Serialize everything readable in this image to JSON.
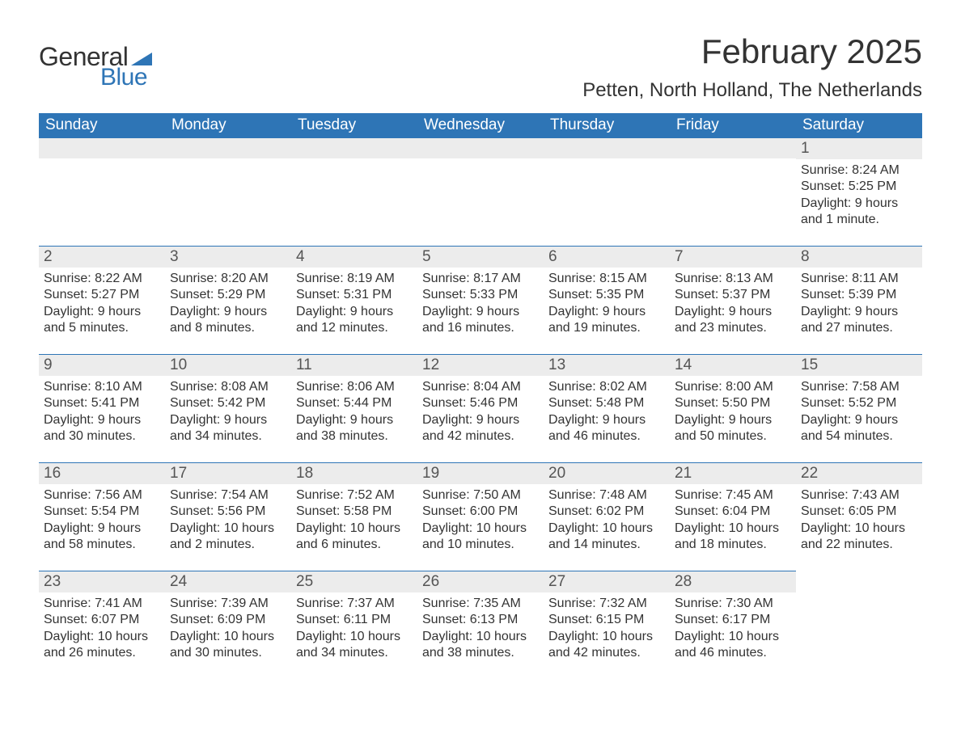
{
  "brand": {
    "text1": "General",
    "text2": "Blue",
    "flag_color": "#2e75b6"
  },
  "header": {
    "month_title": "February 2025",
    "location": "Petten, North Holland, The Netherlands"
  },
  "styling": {
    "header_bg": "#2e75b6",
    "header_text": "#ffffff",
    "daynum_bg": "#ececec",
    "row_border": "#2e75b6",
    "body_text": "#333333",
    "page_bg": "#ffffff",
    "title_fontsize": 42,
    "location_fontsize": 24,
    "th_fontsize": 19,
    "daynum_fontsize": 19,
    "body_fontsize": 16
  },
  "weekdays": [
    "Sunday",
    "Monday",
    "Tuesday",
    "Wednesday",
    "Thursday",
    "Friday",
    "Saturday"
  ],
  "first_weekday_index": 6,
  "days": [
    {
      "n": 1,
      "sunrise": "8:24 AM",
      "sunset": "5:25 PM",
      "daylight": "9 hours and 1 minute."
    },
    {
      "n": 2,
      "sunrise": "8:22 AM",
      "sunset": "5:27 PM",
      "daylight": "9 hours and 5 minutes."
    },
    {
      "n": 3,
      "sunrise": "8:20 AM",
      "sunset": "5:29 PM",
      "daylight": "9 hours and 8 minutes."
    },
    {
      "n": 4,
      "sunrise": "8:19 AM",
      "sunset": "5:31 PM",
      "daylight": "9 hours and 12 minutes."
    },
    {
      "n": 5,
      "sunrise": "8:17 AM",
      "sunset": "5:33 PM",
      "daylight": "9 hours and 16 minutes."
    },
    {
      "n": 6,
      "sunrise": "8:15 AM",
      "sunset": "5:35 PM",
      "daylight": "9 hours and 19 minutes."
    },
    {
      "n": 7,
      "sunrise": "8:13 AM",
      "sunset": "5:37 PM",
      "daylight": "9 hours and 23 minutes."
    },
    {
      "n": 8,
      "sunrise": "8:11 AM",
      "sunset": "5:39 PM",
      "daylight": "9 hours and 27 minutes."
    },
    {
      "n": 9,
      "sunrise": "8:10 AM",
      "sunset": "5:41 PM",
      "daylight": "9 hours and 30 minutes."
    },
    {
      "n": 10,
      "sunrise": "8:08 AM",
      "sunset": "5:42 PM",
      "daylight": "9 hours and 34 minutes."
    },
    {
      "n": 11,
      "sunrise": "8:06 AM",
      "sunset": "5:44 PM",
      "daylight": "9 hours and 38 minutes."
    },
    {
      "n": 12,
      "sunrise": "8:04 AM",
      "sunset": "5:46 PM",
      "daylight": "9 hours and 42 minutes."
    },
    {
      "n": 13,
      "sunrise": "8:02 AM",
      "sunset": "5:48 PM",
      "daylight": "9 hours and 46 minutes."
    },
    {
      "n": 14,
      "sunrise": "8:00 AM",
      "sunset": "5:50 PM",
      "daylight": "9 hours and 50 minutes."
    },
    {
      "n": 15,
      "sunrise": "7:58 AM",
      "sunset": "5:52 PM",
      "daylight": "9 hours and 54 minutes."
    },
    {
      "n": 16,
      "sunrise": "7:56 AM",
      "sunset": "5:54 PM",
      "daylight": "9 hours and 58 minutes."
    },
    {
      "n": 17,
      "sunrise": "7:54 AM",
      "sunset": "5:56 PM",
      "daylight": "10 hours and 2 minutes."
    },
    {
      "n": 18,
      "sunrise": "7:52 AM",
      "sunset": "5:58 PM",
      "daylight": "10 hours and 6 minutes."
    },
    {
      "n": 19,
      "sunrise": "7:50 AM",
      "sunset": "6:00 PM",
      "daylight": "10 hours and 10 minutes."
    },
    {
      "n": 20,
      "sunrise": "7:48 AM",
      "sunset": "6:02 PM",
      "daylight": "10 hours and 14 minutes."
    },
    {
      "n": 21,
      "sunrise": "7:45 AM",
      "sunset": "6:04 PM",
      "daylight": "10 hours and 18 minutes."
    },
    {
      "n": 22,
      "sunrise": "7:43 AM",
      "sunset": "6:05 PM",
      "daylight": "10 hours and 22 minutes."
    },
    {
      "n": 23,
      "sunrise": "7:41 AM",
      "sunset": "6:07 PM",
      "daylight": "10 hours and 26 minutes."
    },
    {
      "n": 24,
      "sunrise": "7:39 AM",
      "sunset": "6:09 PM",
      "daylight": "10 hours and 30 minutes."
    },
    {
      "n": 25,
      "sunrise": "7:37 AM",
      "sunset": "6:11 PM",
      "daylight": "10 hours and 34 minutes."
    },
    {
      "n": 26,
      "sunrise": "7:35 AM",
      "sunset": "6:13 PM",
      "daylight": "10 hours and 38 minutes."
    },
    {
      "n": 27,
      "sunrise": "7:32 AM",
      "sunset": "6:15 PM",
      "daylight": "10 hours and 42 minutes."
    },
    {
      "n": 28,
      "sunrise": "7:30 AM",
      "sunset": "6:17 PM",
      "daylight": "10 hours and 46 minutes."
    }
  ],
  "labels": {
    "sunrise": "Sunrise:",
    "sunset": "Sunset:",
    "daylight": "Daylight:"
  }
}
